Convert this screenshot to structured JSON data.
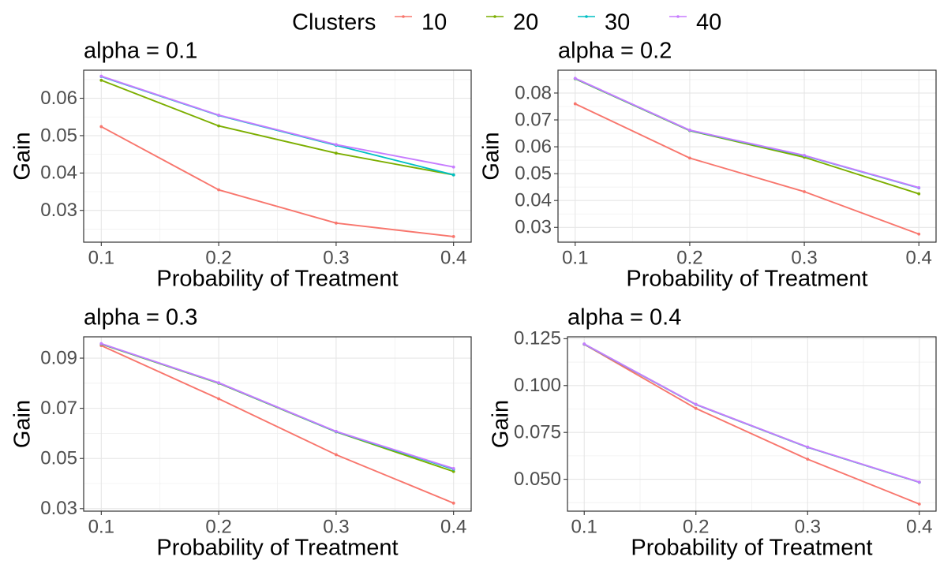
{
  "legend": {
    "title": "Clusters",
    "placement": "top",
    "items": [
      {
        "label": "10",
        "color": "#F8766D"
      },
      {
        "label": "20",
        "color": "#7CAE00"
      },
      {
        "label": "30",
        "color": "#00BFC4"
      },
      {
        "label": "40",
        "color": "#C77CFF"
      }
    ]
  },
  "chart_data": [
    {
      "type": "line",
      "title": "alpha = 0.1",
      "xlabel": "Probability of Treatment",
      "ylabel": "Gain",
      "x": [
        0.1,
        0.2,
        0.3,
        0.4
      ],
      "xticks": [
        "0.1",
        "0.2",
        "0.3",
        "0.4"
      ],
      "xlim": [
        0.085,
        0.415
      ],
      "ylim": [
        0.0215,
        0.0675
      ],
      "yticks": [
        0.03,
        0.04,
        0.05,
        0.06
      ],
      "ytick_labels": [
        "0.03",
        "0.04",
        "0.05",
        "0.06"
      ],
      "grid": true,
      "series": [
        {
          "name": "10",
          "color": "#F8766D",
          "values": [
            0.0524,
            0.0355,
            0.0266,
            0.023
          ]
        },
        {
          "name": "20",
          "color": "#7CAE00",
          "values": [
            0.0648,
            0.0526,
            0.0453,
            0.0395
          ]
        },
        {
          "name": "30",
          "color": "#00BFC4",
          "values": [
            0.0658,
            0.0554,
            0.0474,
            0.0395
          ]
        },
        {
          "name": "40",
          "color": "#C77CFF",
          "values": [
            0.0659,
            0.0555,
            0.0476,
            0.0416
          ]
        }
      ]
    },
    {
      "type": "line",
      "title": "alpha = 0.2",
      "xlabel": "Probability of Treatment",
      "ylabel": "Gain",
      "x": [
        0.1,
        0.2,
        0.3,
        0.4
      ],
      "xticks": [
        "0.1",
        "0.2",
        "0.3",
        "0.4"
      ],
      "xlim": [
        0.085,
        0.415
      ],
      "ylim": [
        0.0245,
        0.0885
      ],
      "yticks": [
        0.03,
        0.04,
        0.05,
        0.06,
        0.07,
        0.08
      ],
      "ytick_labels": [
        "0.03",
        "0.04",
        "0.05",
        "0.06",
        "0.07",
        "0.08"
      ],
      "grid": true,
      "series": [
        {
          "name": "10",
          "color": "#F8766D",
          "values": [
            0.076,
            0.0558,
            0.0433,
            0.0275
          ]
        },
        {
          "name": "20",
          "color": "#7CAE00",
          "values": [
            0.0853,
            0.066,
            0.0561,
            0.0425
          ]
        },
        {
          "name": "30",
          "color": "#00BFC4",
          "values": [
            0.0854,
            0.0661,
            0.0567,
            0.0447
          ]
        },
        {
          "name": "40",
          "color": "#C77CFF",
          "values": [
            0.0855,
            0.0662,
            0.0568,
            0.0448
          ]
        }
      ]
    },
    {
      "type": "line",
      "title": "alpha = 0.3",
      "xlabel": "Probability of Treatment",
      "ylabel": "Gain",
      "x": [
        0.1,
        0.2,
        0.3,
        0.4
      ],
      "xticks": [
        "0.1",
        "0.2",
        "0.3",
        "0.4"
      ],
      "xlim": [
        0.085,
        0.415
      ],
      "ylim": [
        0.029,
        0.0985
      ],
      "yticks": [
        0.03,
        0.05,
        0.07,
        0.09
      ],
      "ytick_labels": [
        "0.03",
        "0.05",
        "0.07",
        "0.09"
      ],
      "grid": true,
      "series": [
        {
          "name": "10",
          "color": "#F8766D",
          "values": [
            0.095,
            0.0738,
            0.0515,
            0.0322
          ]
        },
        {
          "name": "20",
          "color": "#7CAE00",
          "values": [
            0.0956,
            0.08,
            0.0606,
            0.0448
          ]
        },
        {
          "name": "30",
          "color": "#00BFC4",
          "values": [
            0.0957,
            0.0801,
            0.0607,
            0.0457
          ]
        },
        {
          "name": "40",
          "color": "#C77CFF",
          "values": [
            0.0958,
            0.0802,
            0.0608,
            0.046
          ]
        }
      ]
    },
    {
      "type": "line",
      "title": "alpha = 0.4",
      "xlabel": "Probability of Treatment",
      "ylabel": "Gain",
      "x": [
        0.1,
        0.2,
        0.3,
        0.4
      ],
      "xticks": [
        "0.1",
        "0.2",
        "0.3",
        "0.4"
      ],
      "xlim": [
        0.085,
        0.415
      ],
      "ylim": [
        0.033,
        0.126
      ],
      "yticks": [
        0.05,
        0.075,
        0.1,
        0.125
      ],
      "ytick_labels": [
        "0.050",
        "0.075",
        "0.100",
        "0.125"
      ],
      "grid": true,
      "series": [
        {
          "name": "10",
          "color": "#F8766D",
          "values": [
            0.122,
            0.0878,
            0.0607,
            0.0368
          ]
        },
        {
          "name": "20",
          "color": "#7CAE00",
          "values": [
            0.1221,
            0.0899,
            0.0671,
            0.0484
          ]
        },
        {
          "name": "30",
          "color": "#00BFC4",
          "values": [
            0.1221,
            0.0899,
            0.0671,
            0.0484
          ]
        },
        {
          "name": "40",
          "color": "#C77CFF",
          "values": [
            0.1222,
            0.09,
            0.0672,
            0.0485
          ]
        }
      ]
    }
  ]
}
